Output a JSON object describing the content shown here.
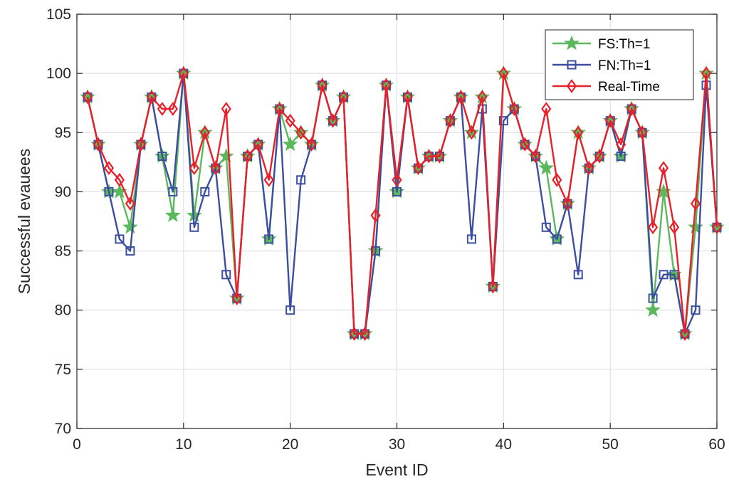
{
  "chart_data": {
    "type": "line",
    "xlabel": "Event ID",
    "ylabel": "Successful evauees",
    "xlim": [
      0,
      60
    ],
    "ylim": [
      70,
      105
    ],
    "xticks": [
      0,
      10,
      20,
      30,
      40,
      50,
      60
    ],
    "yticks": [
      70,
      75,
      80,
      85,
      90,
      95,
      100,
      105
    ],
    "grid": true,
    "legend_position": "top-right",
    "x": [
      1,
      2,
      3,
      4,
      5,
      6,
      7,
      8,
      9,
      10,
      11,
      12,
      13,
      14,
      15,
      16,
      17,
      18,
      19,
      20,
      21,
      22,
      23,
      24,
      25,
      26,
      27,
      28,
      29,
      30,
      31,
      32,
      33,
      34,
      35,
      36,
      37,
      38,
      39,
      40,
      41,
      42,
      43,
      44,
      45,
      46,
      47,
      48,
      49,
      50,
      51,
      52,
      53,
      54,
      55,
      56,
      57,
      58,
      59,
      60
    ],
    "series": [
      {
        "name": "FS:Th=1",
        "color": "#5cb85c",
        "marker": "star",
        "values": [
          98,
          94,
          90,
          90,
          87,
          94,
          98,
          93,
          88,
          100,
          88,
          95,
          92,
          93,
          81,
          93,
          94,
          86,
          97,
          94,
          95,
          94,
          99,
          96,
          98,
          78,
          78,
          85,
          99,
          90,
          98,
          92,
          93,
          93,
          96,
          98,
          95,
          98,
          82,
          100,
          97,
          94,
          93,
          92,
          86,
          89,
          95,
          92,
          93,
          96,
          93,
          97,
          95,
          80,
          90,
          83,
          78,
          87,
          100,
          87
        ]
      },
      {
        "name": "FN:Th=1",
        "color": "#3b4ea0",
        "marker": "square",
        "values": [
          98,
          94,
          90,
          86,
          85,
          94,
          98,
          93,
          90,
          100,
          87,
          90,
          92,
          83,
          81,
          93,
          94,
          86,
          97,
          80,
          91,
          94,
          99,
          96,
          98,
          78,
          78,
          85,
          99,
          90,
          98,
          92,
          93,
          93,
          96,
          98,
          86,
          97,
          82,
          96,
          97,
          94,
          93,
          87,
          86,
          89,
          83,
          92,
          93,
          96,
          93,
          97,
          95,
          81,
          83,
          83,
          78,
          80,
          99,
          87
        ]
      },
      {
        "name": "Real-Time",
        "color": "#e8202a",
        "marker": "diamond",
        "values": [
          98,
          94,
          92,
          91,
          89,
          94,
          98,
          97,
          97,
          100,
          92,
          95,
          92,
          97,
          81,
          93,
          94,
          91,
          97,
          96,
          95,
          94,
          99,
          96,
          98,
          78,
          78,
          88,
          99,
          91,
          98,
          92,
          93,
          93,
          96,
          98,
          95,
          98,
          82,
          100,
          97,
          94,
          93,
          97,
          91,
          89,
          95,
          92,
          93,
          96,
          94,
          97,
          95,
          87,
          92,
          87,
          78,
          89,
          100,
          87
        ]
      }
    ]
  }
}
